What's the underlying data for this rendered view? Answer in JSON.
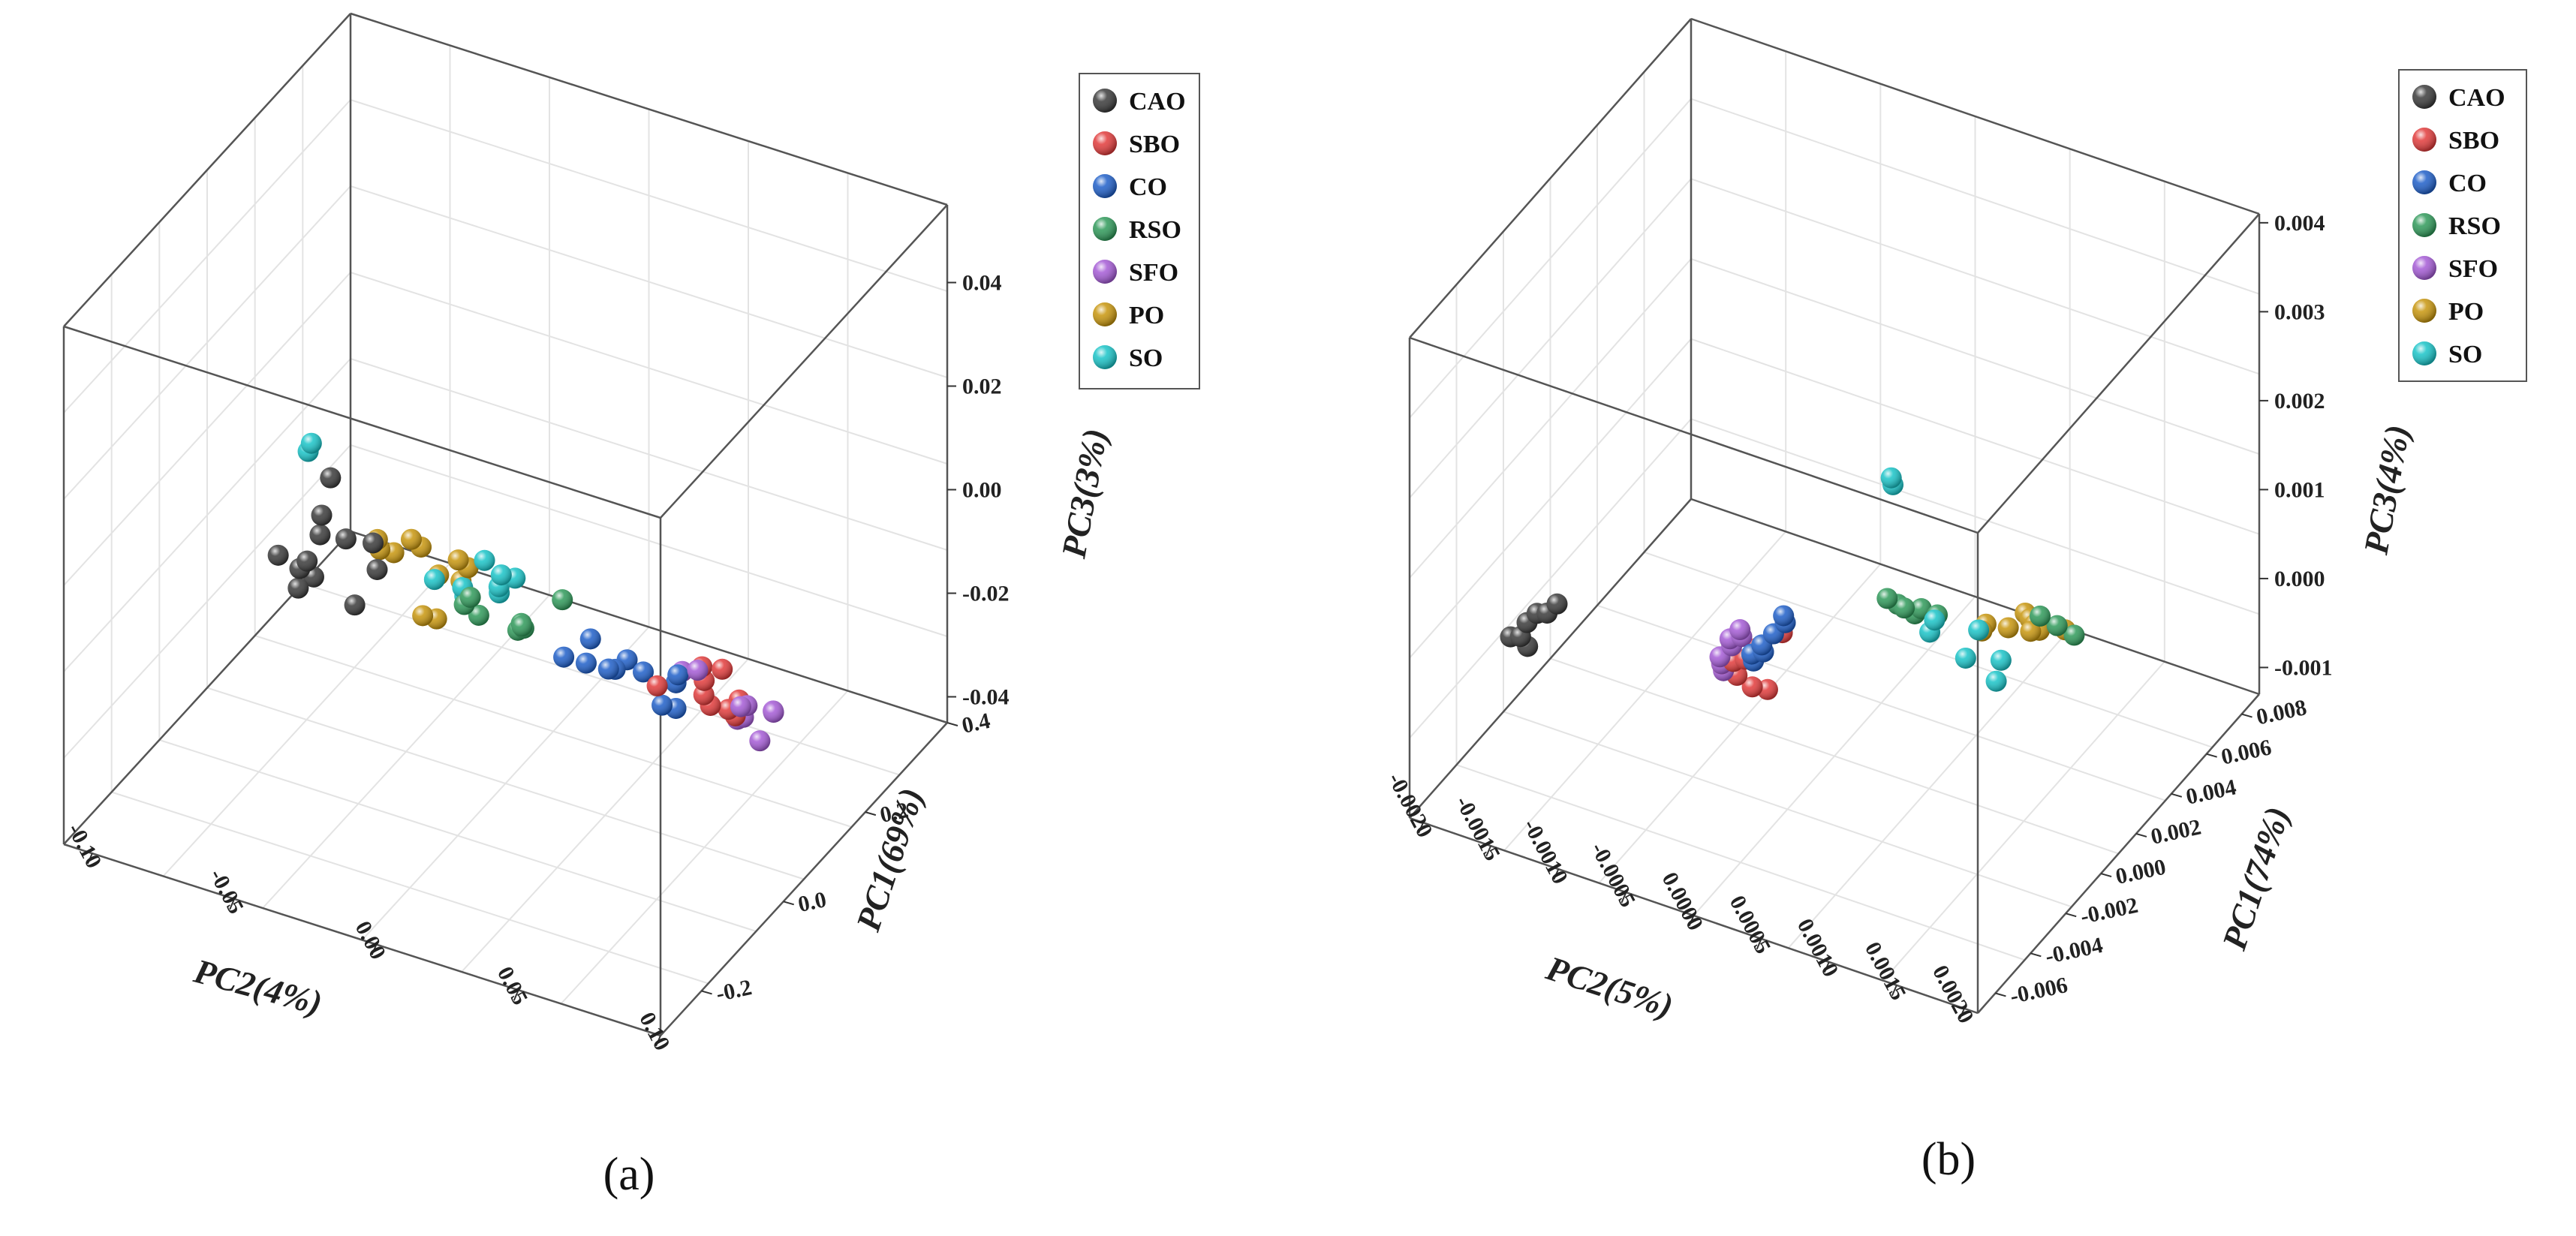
{
  "chart_data": [
    {
      "panel": "a",
      "type": "scatter",
      "dimensions": 3,
      "axes": {
        "pc1": {
          "label": "PC1(69%)",
          "ticks": [
            "-0.2",
            "0.0",
            "0.2",
            "0.4"
          ]
        },
        "pc2": {
          "label": "PC2(4%)",
          "ticks": [
            "-0.10",
            "-0.05",
            "0.00",
            "0.05",
            "0.10"
          ]
        },
        "pc3": {
          "label": "PC3(3%)",
          "ticks": [
            "0.04",
            "0.02",
            "0.00",
            "-0.02",
            "-0.04"
          ]
        }
      },
      "legend": [
        "CAO",
        "SBO",
        "CO",
        "RSO",
        "SFO",
        "PO",
        "SO"
      ],
      "series": [
        {
          "name": "CAO",
          "color": "#3a3a3a",
          "points": [
            [
              -0.19,
              -0.032,
              0.03
            ],
            [
              -0.17,
              -0.038,
              0.02
            ],
            [
              -0.16,
              -0.04,
              0.015
            ],
            [
              -0.15,
              -0.046,
              0.008
            ],
            [
              -0.14,
              -0.05,
              0.005
            ],
            [
              -0.13,
              -0.052,
              0.0
            ],
            [
              -0.12,
              -0.048,
              0.002
            ],
            [
              -0.11,
              -0.035,
              -0.002
            ],
            [
              -0.1,
              -0.03,
              0.01
            ],
            [
              -0.09,
              -0.03,
              0.004
            ],
            [
              0.05,
              -0.085,
              -0.015
            ],
            [
              0.25,
              -0.09,
              -0.03
            ]
          ]
        },
        {
          "name": "SBO",
          "color": "#e23b3b",
          "points": [
            [
              -0.1,
              0.07,
              0.0
            ],
            [
              -0.06,
              0.08,
              0.002
            ],
            [
              -0.02,
              0.075,
              -0.005
            ],
            [
              0.0,
              0.072,
              -0.01
            ],
            [
              0.03,
              0.07,
              -0.015
            ],
            [
              0.06,
              0.072,
              -0.018
            ],
            [
              0.1,
              0.07,
              -0.02
            ],
            [
              0.16,
              0.06,
              -0.03
            ],
            [
              -0.08,
              0.09,
              0.005
            ]
          ]
        },
        {
          "name": "CO",
          "color": "#1f5fc9",
          "points": [
            [
              -0.12,
              0.04,
              0.002
            ],
            [
              -0.1,
              0.045,
              0.0
            ],
            [
              -0.08,
              0.05,
              -0.002
            ],
            [
              -0.05,
              0.048,
              -0.005
            ],
            [
              -0.03,
              0.055,
              -0.006
            ],
            [
              0.0,
              0.045,
              -0.008
            ],
            [
              0.02,
              0.06,
              -0.01
            ],
            [
              0.05,
              0.055,
              -0.015
            ],
            [
              0.12,
              0.04,
              -0.028
            ],
            [
              0.14,
              0.042,
              -0.03
            ],
            [
              -0.02,
              0.035,
              -0.004
            ]
          ]
        },
        {
          "name": "RSO",
          "color": "#2f9a5a",
          "points": [
            [
              -0.14,
              0.01,
              0.01
            ],
            [
              -0.12,
              0.005,
              0.006
            ],
            [
              -0.05,
              0.0,
              -0.003
            ],
            [
              0.0,
              0.008,
              -0.008
            ],
            [
              0.04,
              0.002,
              -0.012
            ],
            [
              0.06,
              0.0,
              -0.015
            ],
            [
              0.08,
              -0.005,
              -0.018
            ],
            [
              0.05,
              0.015,
              -0.006
            ]
          ]
        },
        {
          "name": "SFO",
          "color": "#a55bd6",
          "points": [
            [
              -0.14,
              0.09,
              0.01
            ],
            [
              0.0,
              0.085,
              -0.01
            ],
            [
              0.05,
              0.08,
              -0.015
            ],
            [
              0.08,
              0.085,
              -0.018
            ],
            [
              0.1,
              0.082,
              -0.02
            ],
            [
              0.1,
              0.05,
              -0.018
            ],
            [
              0.18,
              0.06,
              -0.032
            ],
            [
              0.2,
              0.055,
              -0.035
            ],
            [
              0.22,
              0.06,
              -0.04
            ]
          ]
        },
        {
          "name": "PO",
          "color": "#c8960d",
          "points": [
            [
              -0.18,
              -0.005,
              0.022
            ],
            [
              -0.17,
              -0.003,
              0.02
            ],
            [
              -0.1,
              0.0,
              0.012
            ],
            [
              -0.09,
              0.002,
              0.01
            ],
            [
              -0.02,
              -0.04,
              0.002
            ],
            [
              0.0,
              -0.042,
              -0.002
            ],
            [
              0.02,
              -0.04,
              -0.004
            ],
            [
              0.06,
              -0.03,
              -0.01
            ],
            [
              0.08,
              -0.025,
              -0.012
            ],
            [
              0.16,
              -0.05,
              -0.03
            ],
            [
              0.18,
              -0.048,
              -0.032
            ]
          ]
        },
        {
          "name": "SO",
          "color": "#19c4c8",
          "points": [
            [
              -0.32,
              -0.02,
              0.05
            ],
            [
              -0.3,
              -0.024,
              0.046
            ],
            [
              -0.14,
              0.015,
              0.018
            ],
            [
              -0.12,
              0.018,
              0.014
            ],
            [
              -0.1,
              0.02,
              0.012
            ],
            [
              -0.07,
              0.01,
              0.006
            ],
            [
              -0.02,
              -0.01,
              -0.002
            ],
            [
              0.0,
              0.0,
              -0.003
            ],
            [
              0.02,
              -0.015,
              -0.008
            ],
            [
              0.05,
              -0.03,
              -0.01
            ]
          ]
        }
      ]
    },
    {
      "panel": "b",
      "type": "scatter",
      "dimensions": 3,
      "axes": {
        "pc1": {
          "label": "PC1(74%)",
          "ticks": [
            "-0.006",
            "-0.004",
            "-0.002",
            "0.000",
            "0.002",
            "0.004",
            "0.006",
            "0.008"
          ]
        },
        "pc2": {
          "label": "PC2(5%)",
          "ticks": [
            "-0.0020",
            "-0.0015",
            "-0.0010",
            "-0.0005",
            "0.0000",
            "0.0005",
            "0.0010",
            "0.0015",
            "0.0020"
          ]
        },
        "pc3": {
          "label": "PC3(4%)",
          "ticks": [
            "0.004",
            "0.003",
            "0.002",
            "0.001",
            "0.000",
            "-0.001"
          ]
        }
      },
      "legend": [
        "CAO",
        "SBO",
        "CO",
        "RSO",
        "SFO",
        "PO",
        "SO"
      ],
      "series": [
        {
          "name": "CAO",
          "color": "#3a3a3a",
          "points": [
            [
              -0.004,
              -0.0014,
              0.0008
            ],
            [
              -0.0038,
              -0.0015,
              0.0006
            ],
            [
              -0.0036,
              -0.0016,
              0.0005
            ],
            [
              -0.0034,
              -0.0017,
              0.0003
            ],
            [
              -0.003,
              -0.0018,
              0.0
            ],
            [
              -0.0028,
              -0.0019,
              -0.0001
            ],
            [
              -0.0026,
              -0.0018,
              -0.0002
            ]
          ]
        },
        {
          "name": "SBO",
          "color": "#e23b3b",
          "points": [
            [
              -0.0035,
              0.0002,
              0.0012
            ],
            [
              -0.0034,
              0.0,
              0.0009
            ],
            [
              -0.0033,
              -0.0001,
              0.0007
            ],
            [
              -0.0032,
              -0.0002,
              0.0006
            ],
            [
              -0.0031,
              -0.0003,
              0.0005
            ],
            [
              -0.003,
              -0.0002,
              0.0004
            ],
            [
              -0.0029,
              -0.0001,
              0.0003
            ],
            [
              -0.0028,
              0.0,
              0.0003
            ]
          ]
        },
        {
          "name": "CO",
          "color": "#1f5fc9",
          "points": [
            [
              -0.0042,
              0.0003,
              0.0016
            ],
            [
              -0.0041,
              0.0003,
              0.0015
            ],
            [
              -0.004,
              0.0002,
              0.0013
            ],
            [
              -0.0039,
              0.0001,
              0.0011
            ],
            [
              -0.0038,
              0.0001,
              0.001
            ],
            [
              -0.0037,
              0.0,
              0.0009
            ],
            [
              -0.0036,
              0.0,
              0.0008
            ]
          ]
        },
        {
          "name": "RSO",
          "color": "#2f9a5a",
          "points": [
            [
              0.003,
              0.0005,
              0.0001
            ],
            [
              0.004,
              0.0,
              -0.0002
            ],
            [
              0.0042,
              0.0001,
              -0.0003
            ],
            [
              0.0044,
              0.0002,
              -0.0003
            ],
            [
              0.0046,
              0.0,
              -0.0004
            ],
            [
              0.0048,
              0.0001,
              -0.0005
            ],
            [
              0.005,
              0.001,
              -0.0001
            ],
            [
              0.0052,
              0.0011,
              -0.0002
            ],
            [
              0.0054,
              0.0012,
              -0.0003
            ]
          ]
        },
        {
          "name": "SFO",
          "color": "#a55bd6",
          "points": [
            [
              -0.0036,
              -0.0001,
              0.0011
            ],
            [
              -0.0035,
              -0.0001,
              0.001
            ],
            [
              -0.0034,
              -0.0002,
              0.0009
            ],
            [
              -0.0033,
              -0.0002,
              0.0008
            ],
            [
              -0.0032,
              -0.0003,
              0.0006
            ],
            [
              -0.0031,
              -0.0003,
              0.0005
            ],
            [
              -0.003,
              -0.0003,
              0.0004
            ]
          ]
        },
        {
          "name": "PO",
          "color": "#c8960d",
          "points": [
            [
              0.004,
              0.0007,
              -0.0002
            ],
            [
              0.005,
              0.0006,
              -0.0004
            ],
            [
              0.0055,
              0.0007,
              -0.0005
            ],
            [
              0.006,
              0.0008,
              -0.0006
            ],
            [
              0.0065,
              0.0008,
              -0.0007
            ],
            [
              0.007,
              0.0007,
              -0.0008
            ],
            [
              0.0075,
              0.0006,
              -0.0009
            ],
            [
              0.008,
              0.0005,
              -0.001
            ],
            [
              0.0072,
              0.0009,
              -0.0008
            ]
          ]
        },
        {
          "name": "SO",
          "color": "#19c4c8",
          "points": [
            [
              -0.005,
              0.0012,
              0.0038
            ],
            [
              -0.0049,
              0.0012,
              0.0037
            ],
            [
              -0.001,
              0.001,
              0.0012
            ],
            [
              -0.0008,
              0.0013,
              0.0012
            ],
            [
              -0.0005,
              0.0009,
              0.0009
            ],
            [
              -0.0003,
              0.0014,
              0.0008
            ],
            [
              0.0,
              0.0011,
              0.0006
            ],
            [
              0.0002,
              0.0013,
              0.0004
            ]
          ]
        }
      ]
    }
  ],
  "panel_labels": [
    "(a)",
    "(b)"
  ]
}
